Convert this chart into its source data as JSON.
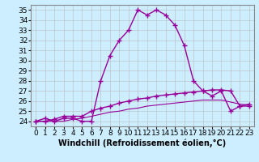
{
  "line1": [
    24.0,
    24.3,
    24.0,
    24.3,
    24.3,
    24.0,
    24.0,
    28.0,
    30.5,
    32.0,
    33.0,
    35.0,
    34.5,
    35.0,
    34.5,
    33.5,
    31.5,
    28.0,
    27.0,
    26.5,
    27.0,
    25.0,
    25.5,
    25.5
  ],
  "line2": [
    24.0,
    24.0,
    24.2,
    24.5,
    24.5,
    24.5,
    25.0,
    25.3,
    25.5,
    25.8,
    26.0,
    26.2,
    26.3,
    26.5,
    26.6,
    26.7,
    26.8,
    26.9,
    27.0,
    27.1,
    27.1,
    27.0,
    25.5,
    25.7
  ],
  "line3": [
    24.0,
    24.0,
    24.0,
    24.0,
    24.2,
    24.3,
    24.5,
    24.7,
    24.9,
    25.0,
    25.2,
    25.3,
    25.5,
    25.6,
    25.7,
    25.8,
    25.9,
    26.0,
    26.1,
    26.1,
    26.1,
    25.9,
    25.7,
    25.6
  ],
  "x": [
    0,
    1,
    2,
    3,
    4,
    5,
    6,
    7,
    8,
    9,
    10,
    11,
    12,
    13,
    14,
    15,
    16,
    17,
    18,
    19,
    20,
    21,
    22,
    23
  ],
  "line_color": "#990099",
  "bg_color": "#cceeff",
  "grid_color": "#bbbbbb",
  "xlabel": "Windchill (Refroidissement éolien,°C)",
  "xlim": [
    -0.5,
    23.5
  ],
  "ylim": [
    23.5,
    35.5
  ],
  "yticks": [
    24,
    25,
    26,
    27,
    28,
    29,
    30,
    31,
    32,
    33,
    34,
    35
  ],
  "xticks": [
    0,
    1,
    2,
    3,
    4,
    5,
    6,
    7,
    8,
    9,
    10,
    11,
    12,
    13,
    14,
    15,
    16,
    17,
    18,
    19,
    20,
    21,
    22,
    23
  ],
  "marker": "+",
  "markersize": 4,
  "linewidth": 1.0,
  "xlabel_fontsize": 7,
  "tick_fontsize": 6.5
}
